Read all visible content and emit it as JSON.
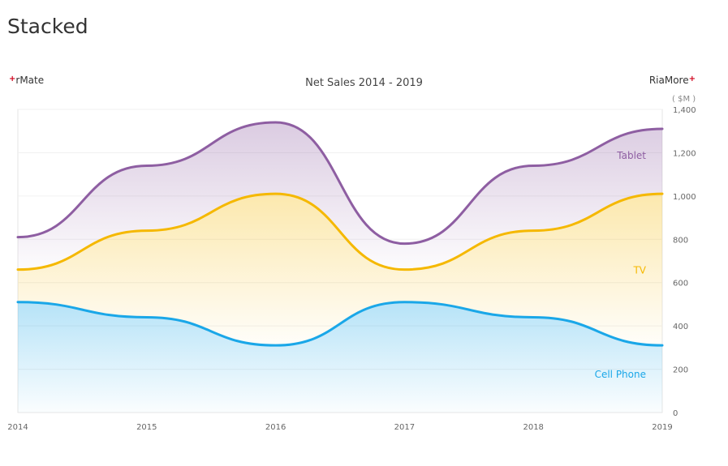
{
  "page": {
    "title": "Stacked"
  },
  "brands": {
    "left": "rMate",
    "right": "RiaMore",
    "mark": "+"
  },
  "chart_data": {
    "type": "area",
    "stacked": true,
    "title": "Net Sales 2014 - 2019",
    "x": [
      "2014",
      "2015",
      "2016",
      "2017",
      "2018",
      "2019"
    ],
    "series": [
      {
        "name": "Cell Phone",
        "values": [
          510,
          440,
          310,
          510,
          440,
          310
        ],
        "color": "#1aa7e8"
      },
      {
        "name": "TV",
        "values": [
          150,
          400,
          700,
          150,
          400,
          700
        ],
        "color": "#f5b800"
      },
      {
        "name": "Tablet",
        "values": [
          150,
          300,
          330,
          120,
          300,
          300
        ],
        "color": "#8e5ea2"
      }
    ],
    "y_unit": "( $M )",
    "yticks": [
      0,
      200,
      400,
      600,
      800,
      1000,
      1200,
      1400
    ],
    "ylim": [
      0,
      1400
    ],
    "yaxis_position": "right",
    "grid": true
  }
}
